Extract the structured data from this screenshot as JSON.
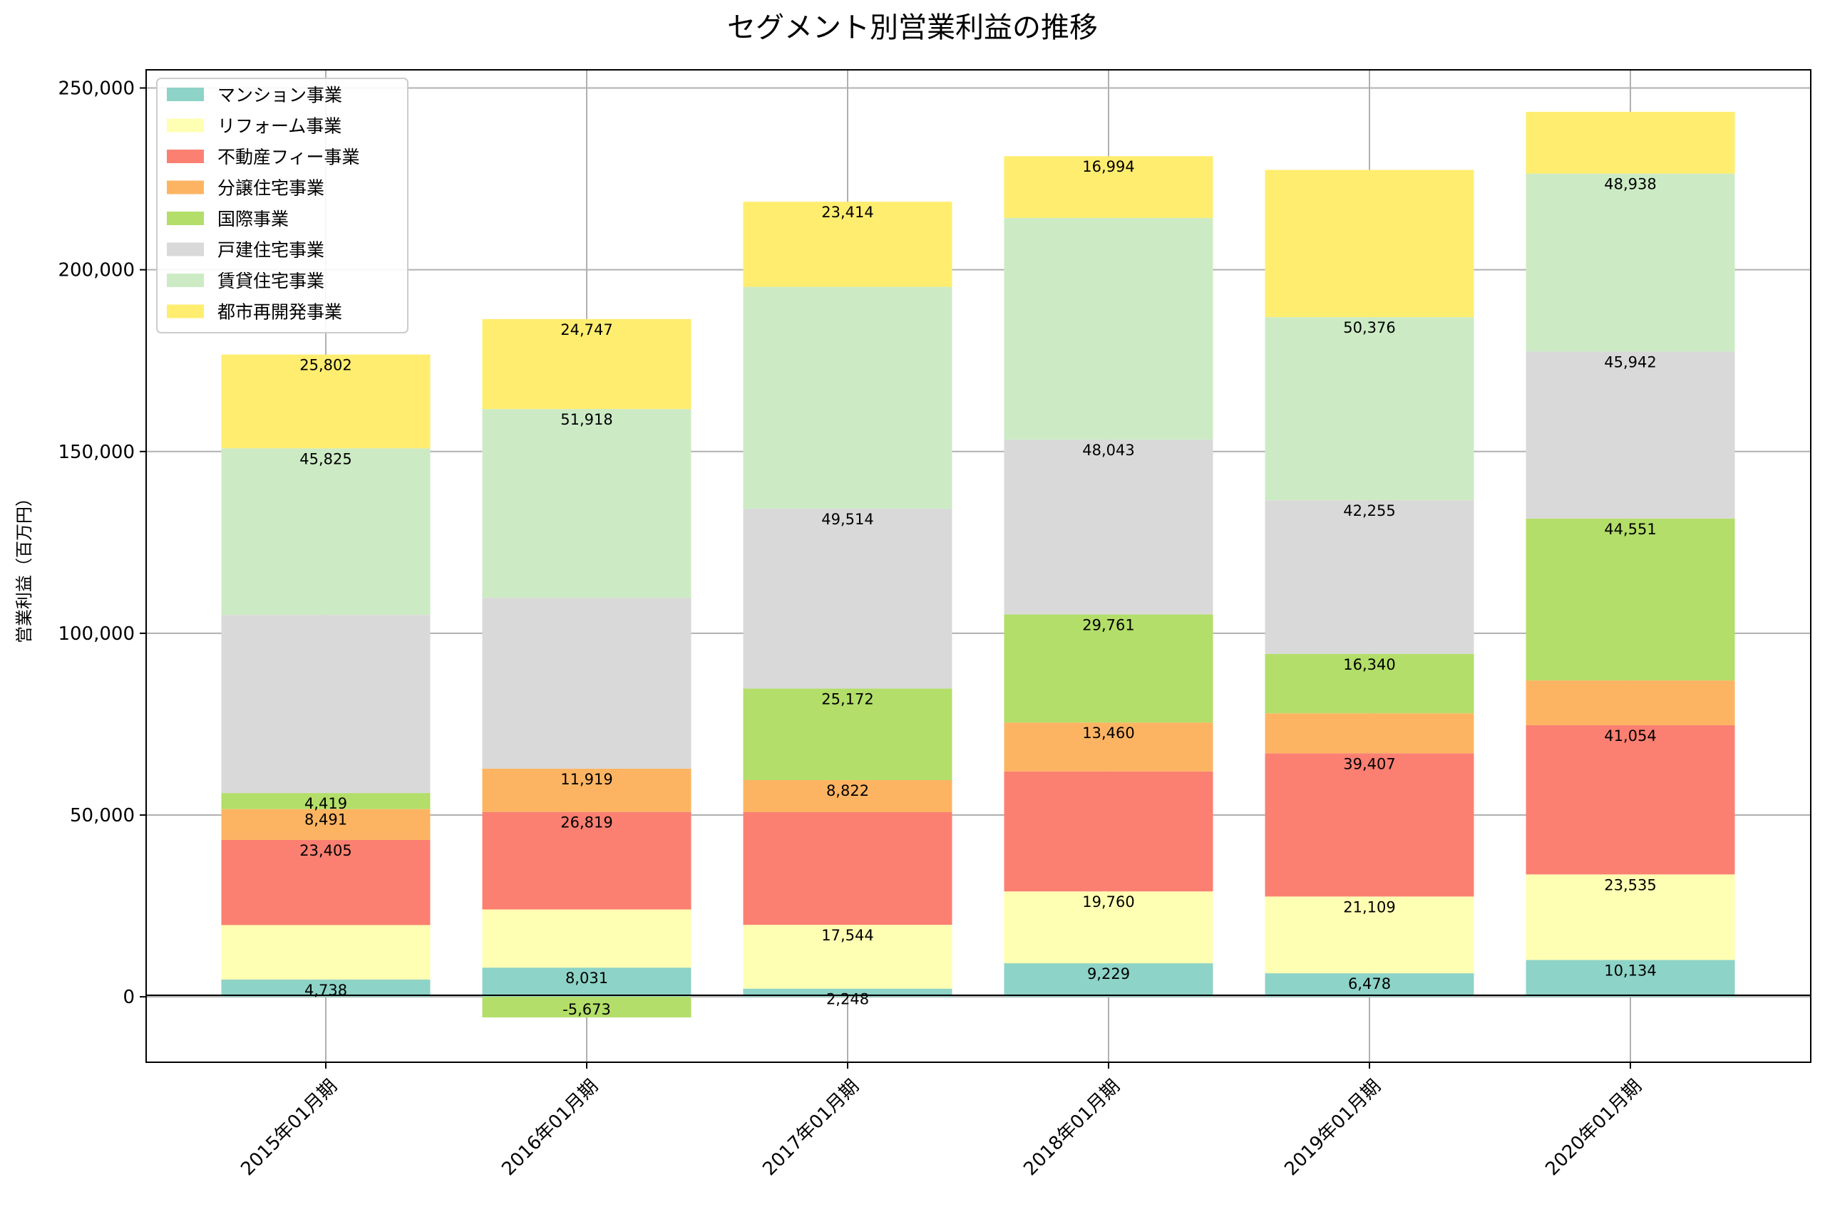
{
  "chart_data": {
    "type": "bar",
    "stacked": true,
    "title": "セグメント別営業利益の推移",
    "xlabel": "",
    "ylabel": "営業利益（百万円）",
    "ylim": [
      -18000,
      255000
    ],
    "yticks": [
      0,
      50000,
      100000,
      150000,
      200000,
      250000
    ],
    "ytick_labels": [
      "0",
      "50,000",
      "100,000",
      "150,000",
      "200,000",
      "250,000"
    ],
    "grid": true,
    "legend_position": "upper-left",
    "categories": [
      "2015年01月期",
      "2016年01月期",
      "2017年01月期",
      "2018年01月期",
      "2019年01月期",
      "2020年01月期"
    ],
    "series": [
      {
        "name": "マンション事業",
        "color": "#8dd3c7",
        "values": [
          4738,
          8031,
          2248,
          9229,
          6478,
          10134
        ],
        "labels": [
          "4,738",
          "8,031",
          "2,248",
          "9,229",
          "6,478",
          "10,134"
        ]
      },
      {
        "name": "リフォーム事業",
        "color": "#ffffb3",
        "values": [
          15000,
          16000,
          17544,
          19760,
          21109,
          23535
        ],
        "labels": [
          "",
          "",
          "17,544",
          "19,760",
          "21,109",
          "23,535"
        ]
      },
      {
        "name": "不動産フィー事業",
        "color": "#fb8072",
        "values": [
          23405,
          26819,
          31000,
          33000,
          39407,
          41054
        ],
        "labels": [
          "23,405",
          "26,819",
          "",
          "",
          "39,407",
          "41,054"
        ]
      },
      {
        "name": "分譲住宅事業",
        "color": "#fdb462",
        "values": [
          8491,
          11919,
          8822,
          13460,
          11000,
          12300
        ],
        "labels": [
          "8,491",
          "11,919",
          "8,822",
          "13,460",
          "",
          ""
        ]
      },
      {
        "name": "国際事業",
        "color": "#b3de69",
        "values": [
          4419,
          -5673,
          25172,
          29761,
          16340,
          44551
        ],
        "labels": [
          "4,419",
          "-5,673",
          "25,172",
          "29,761",
          "16,340",
          "44,551"
        ]
      },
      {
        "name": "戸建住宅事業",
        "color": "#d9d9d9",
        "values": [
          49000,
          47000,
          49514,
          48043,
          42255,
          45942
        ],
        "labels": [
          "",
          "",
          "49,514",
          "48,043",
          "42,255",
          "45,942"
        ]
      },
      {
        "name": "賃貸住宅事業",
        "color": "#ccebc5",
        "values": [
          45825,
          51918,
          61000,
          61000,
          50376,
          48938
        ],
        "labels": [
          "45,825",
          "51,918",
          "",
          "",
          "50,376",
          "48,938"
        ]
      },
      {
        "name": "都市再開発事業",
        "color": "#ffed6f",
        "values": [
          25802,
          24747,
          23414,
          16994,
          40500,
          17000
        ],
        "labels": [
          "25,802",
          "24,747",
          "23,414",
          "16,994",
          "",
          ""
        ]
      }
    ]
  }
}
